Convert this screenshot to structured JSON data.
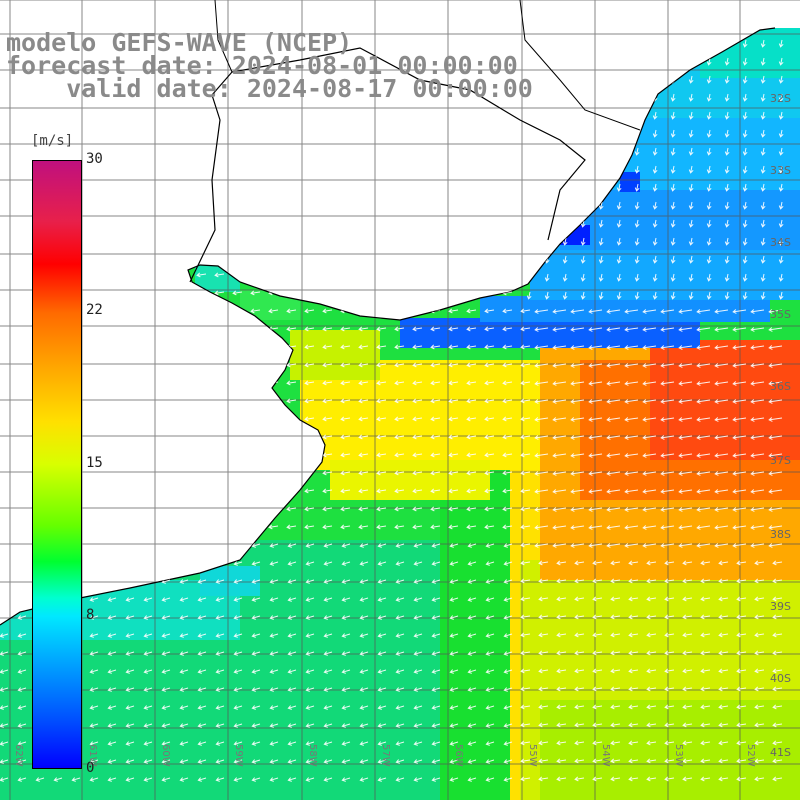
{
  "title": {
    "line1": "modelo GEFS-WAVE (NCEP)",
    "line2": "forecast date: 2024-08-01 00:00:00",
    "line3": "    valid date: 2024-08-17 00:00:00"
  },
  "legend": {
    "unit": "[m/s]",
    "ticks": [
      "30",
      "22",
      "15",
      "8",
      "0"
    ],
    "tick_values": [
      30,
      22,
      15,
      8,
      0
    ],
    "min": 0,
    "max": 30,
    "colors": [
      "#0000ff",
      "#0050ff",
      "#00a0ff",
      "#00e8ff",
      "#00ffd0",
      "#00ff30",
      "#66ff00",
      "#d8ff00",
      "#ffe000",
      "#ffa000",
      "#ff6a00",
      "#ff0000",
      "#e8204a",
      "#c0107e"
    ]
  },
  "map": {
    "lat_labels": [
      "32S",
      "33S",
      "34S",
      "35S",
      "36S",
      "37S",
      "38S",
      "39S",
      "40S",
      "41S"
    ],
    "lon_labels": [
      "62W",
      "61W",
      "60W",
      "59W",
      "58W",
      "57W",
      "56W",
      "55W",
      "54W",
      "53W",
      "52W"
    ],
    "grid_lines": "on",
    "field": "wind speed with direction arrows"
  }
}
